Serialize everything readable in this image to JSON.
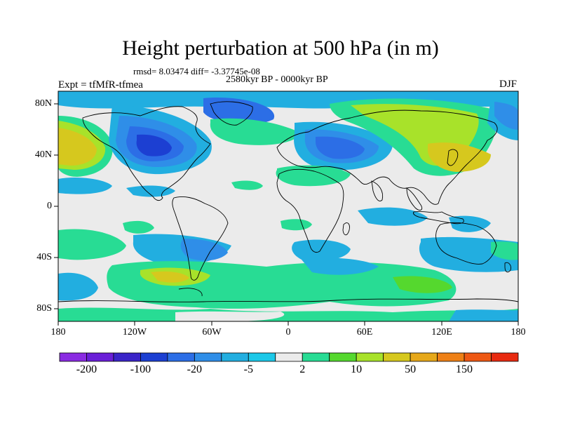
{
  "title": "Height perturbation at 500 hPa (in m)",
  "stats": "rmsd= 8.03474 diff= -3.37745e-08",
  "period": "2580kyr BP - 0000kyr BP",
  "experiment": "Expt = tfMfR-tfmea",
  "season": "DJF",
  "lat_labels": [
    "80N",
    "40N",
    "0",
    "40S",
    "80S"
  ],
  "lon_labels": [
    "180",
    "120W",
    "60W",
    "0",
    "60E",
    "120E",
    "180"
  ],
  "colorbar": {
    "colors": [
      "#8a2be2",
      "#6a1fd8",
      "#3a24c8",
      "#1c3fd2",
      "#2c6ee6",
      "#2f8ee8",
      "#22aee0",
      "#1cc8e8",
      "#ebebeb",
      "#28dc94",
      "#55d82e",
      "#a8e22a",
      "#d6c81e",
      "#e6a81a",
      "#ee8016",
      "#ee5814",
      "#e82a10"
    ],
    "labels": [
      "-200",
      "-100",
      "-20",
      "-5",
      "2",
      "10",
      "50",
      "150"
    ]
  }
}
